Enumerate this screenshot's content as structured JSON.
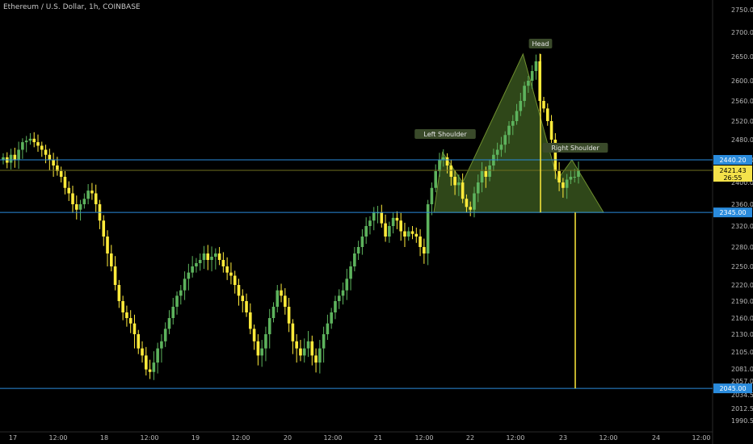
{
  "header": {
    "symbol": "Ethereum / U.S. Dollar, 1h, COINBASE"
  },
  "chart_data": {
    "type": "candlestick",
    "title": "Ethereum / U.S. Dollar, 1h, COINBASE",
    "ylim": [
      1980,
      2770
    ],
    "y_ticks": [
      "2750.00",
      "2700.00",
      "2650.00",
      "2600.00",
      "2560.00",
      "2520.00",
      "2480.00",
      "2440.00",
      "2400.00",
      "2360.00",
      "2320.00",
      "2280.00",
      "2250.00",
      "2220.00",
      "2190.00",
      "2160.00",
      "2130.00",
      "2105.00",
      "2081.00",
      "2057.00",
      "2034.50",
      "2012.50",
      "1990.50"
    ],
    "x_ticks": [
      "17",
      "12:00",
      "18",
      "12:00",
      "19",
      "12:00",
      "20",
      "12:00",
      "21",
      "12:00",
      "22",
      "12:00",
      "23",
      "12:00",
      "24",
      "12:00"
    ],
    "colors": {
      "up": "#5db35d",
      "down": "#ffeb3b",
      "line": "#2a8bdc",
      "pattern_fill": "#3f5f22",
      "pattern_edge": "#6f8f2f"
    },
    "levels": [
      {
        "value": 2440,
        "label": "2440.20"
      },
      {
        "value": 2345,
        "label": "2345.00"
      },
      {
        "value": 2045,
        "label": "2045.00"
      }
    ],
    "current_price": {
      "value": "2421.43",
      "countdown": "26:55"
    },
    "annotations": [
      "Left Shoulder",
      "Head",
      "Right Shoulder"
    ],
    "pattern": {
      "name": "head-and-shoulders",
      "points": [
        [
          252,
          2345
        ],
        [
          258,
          2455
        ],
        [
          272,
          2400
        ],
        [
          314,
          2655
        ],
        [
          338,
          2405
        ],
        [
          348,
          2440
        ],
        [
          370,
          2345
        ]
      ]
    },
    "target": {
      "from": 2345,
      "to": 2045
    },
    "head_wick_top": 2655,
    "candles_close": [
      2445,
      2435,
      2450,
      2440,
      2460,
      2475,
      2478,
      2482,
      2475,
      2468,
      2460,
      2450,
      2440,
      2430,
      2420,
      2410,
      2390,
      2380,
      2360,
      2350,
      2360,
      2370,
      2385,
      2380,
      2360,
      2330,
      2300,
      2270,
      2250,
      2220,
      2190,
      2170,
      2160,
      2150,
      2130,
      2110,
      2100,
      2080,
      2075,
      2090,
      2110,
      2120,
      2140,
      2160,
      2180,
      2200,
      2210,
      2230,
      2240,
      2250,
      2255,
      2260,
      2270,
      2260,
      2265,
      2270,
      2260,
      2250,
      2240,
      2235,
      2220,
      2200,
      2190,
      2170,
      2140,
      2120,
      2100,
      2110,
      2130,
      2160,
      2180,
      2210,
      2200,
      2180,
      2150,
      2120,
      2110,
      2100,
      2110,
      2120,
      2100,
      2090,
      2110,
      2130,
      2150,
      2170,
      2190,
      2200,
      2210,
      2230,
      2250,
      2270,
      2280,
      2300,
      2320,
      2330,
      2345,
      2345,
      2325,
      2300,
      2320,
      2335,
      2330,
      2310,
      2300,
      2310,
      2305,
      2300,
      2280,
      2270,
      2360,
      2390,
      2420,
      2440,
      2445,
      2430,
      2410,
      2395,
      2400,
      2370,
      2355,
      2350,
      2380,
      2400,
      2420,
      2410,
      2430,
      2450,
      2460,
      2470,
      2490,
      2510,
      2520,
      2540,
      2560,
      2590,
      2600,
      2620,
      2640,
      2560,
      2545,
      2520,
      2480,
      2420,
      2400,
      2390,
      2405,
      2410,
      2410,
      2421
    ]
  }
}
